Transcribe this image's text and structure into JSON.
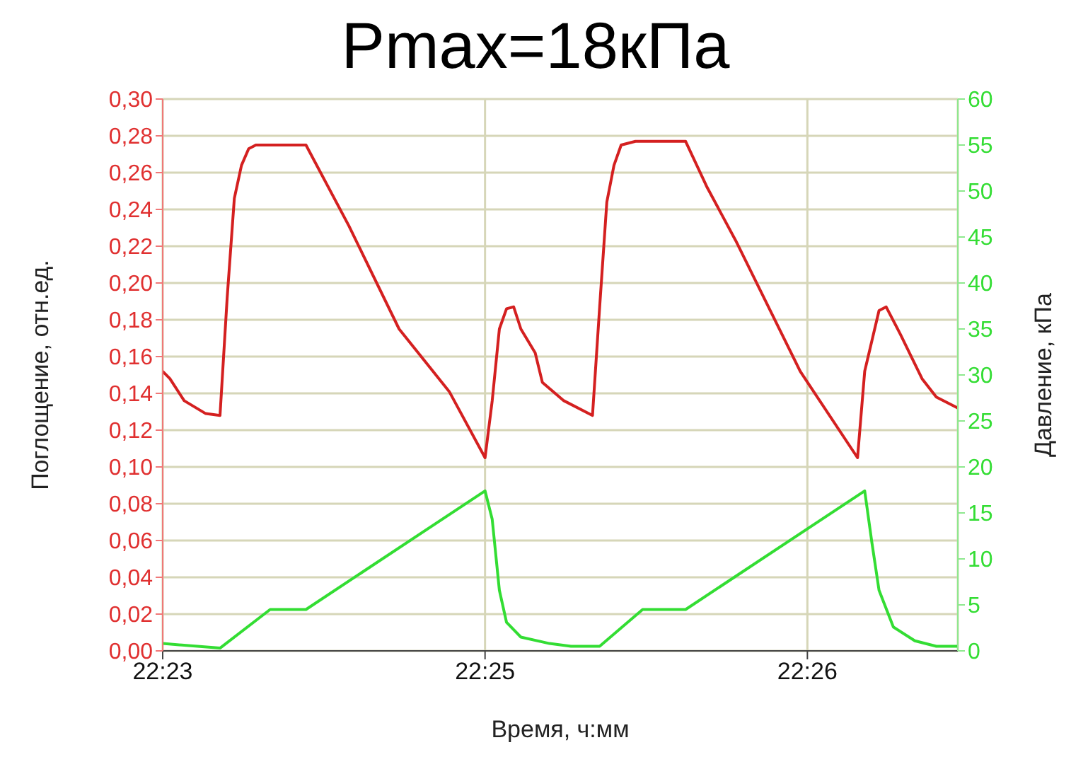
{
  "chart_data": {
    "type": "line",
    "title": "Pmax=18кПа",
    "xlabel": "Время, ч:мм",
    "ylabel": "Поглощение, отн.ед.",
    "y2label": "Давление, кПа",
    "categories": [
      "22:23",
      null,
      null,
      null,
      null,
      null,
      null,
      null,
      null,
      null,
      null,
      null,
      null,
      null,
      null,
      null,
      null,
      null,
      null,
      null,
      null,
      null,
      null,
      null,
      null,
      null,
      null,
      null,
      null,
      null,
      null,
      null,
      null,
      null,
      null,
      null,
      null,
      null,
      null,
      null,
      null,
      null,
      null,
      null,
      null,
      "22:25",
      null,
      null,
      null,
      null,
      null,
      null,
      null,
      null,
      null,
      null,
      null,
      null,
      null,
      null,
      null,
      null,
      null,
      null,
      null,
      null,
      null,
      null,
      null,
      null,
      null,
      null,
      null,
      null,
      null,
      null,
      null,
      null,
      null,
      null,
      null,
      null,
      null,
      null,
      null,
      null,
      null,
      null,
      null,
      null,
      "22:26",
      null,
      null,
      null,
      null,
      null,
      null,
      null,
      null,
      null,
      null,
      null,
      null,
      null,
      null,
      null,
      null,
      null,
      null,
      null,
      null,
      null
    ],
    "ylim": [
      0,
      0.3
    ],
    "yticks": [
      {
        "value": 0,
        "label": "0,00"
      },
      {
        "value": 0.02,
        "label": "0,02"
      },
      {
        "value": 0.04,
        "label": "0,04"
      },
      {
        "value": 0.06,
        "label": "0,06"
      },
      {
        "value": 0.08,
        "label": "0,08"
      },
      {
        "value": 0.1,
        "label": "0,10"
      },
      {
        "value": 0.12,
        "label": "0,12"
      },
      {
        "value": 0.14,
        "label": "0,14"
      },
      {
        "value": 0.16,
        "label": "0,16"
      },
      {
        "value": 0.18,
        "label": "0,18"
      },
      {
        "value": 0.2,
        "label": "0,20"
      },
      {
        "value": 0.22,
        "label": "0,22"
      },
      {
        "value": 0.24,
        "label": "0,24"
      },
      {
        "value": 0.26,
        "label": "0,26"
      },
      {
        "value": 0.28,
        "label": "0,28"
      },
      {
        "value": 0.3,
        "label": "0,30"
      }
    ],
    "y2lim": [
      0,
      60
    ],
    "y2ticks": [
      0,
      5,
      10,
      15,
      20,
      25,
      30,
      35,
      40,
      45,
      50,
      55,
      60
    ],
    "grid": true,
    "series": [
      {
        "color": "#d42020",
        "axis": "y",
        "values": [
          0.152,
          0.148,
          null,
          0.136,
          null,
          null,
          0.129,
          null,
          0.128,
          0.192,
          0.246,
          0.264,
          0.273,
          0.275,
          null,
          null,
          null,
          null,
          null,
          null,
          0.275,
          null,
          null,
          null,
          null,
          null,
          0.231,
          null,
          null,
          null,
          null,
          null,
          null,
          0.175,
          null,
          null,
          null,
          null,
          null,
          null,
          0.141,
          null,
          null,
          null,
          null,
          0.105,
          0.136,
          0.175,
          0.186,
          0.187,
          0.175,
          null,
          0.162,
          0.146,
          null,
          null,
          0.136,
          null,
          null,
          null,
          0.128,
          0.187,
          0.244,
          0.264,
          0.275,
          null,
          0.277,
          null,
          null,
          null,
          null,
          null,
          null,
          0.277,
          null,
          null,
          0.252,
          null,
          null,
          null,
          0.223,
          null,
          null,
          null,
          null,
          null,
          null,
          null,
          null,
          0.152,
          null,
          null,
          null,
          null,
          null,
          null,
          null,
          0.105,
          0.152,
          null,
          0.185,
          0.187,
          null,
          0.172,
          null,
          null,
          0.148,
          null,
          0.138,
          null,
          null,
          0.132
        ]
      },
      {
        "color": "#33dd33",
        "axis": "y2",
        "values": [
          0.8,
          null,
          null,
          null,
          null,
          null,
          null,
          null,
          0.3,
          null,
          null,
          null,
          null,
          null,
          null,
          4.5,
          null,
          null,
          null,
          null,
          4.5,
          null,
          null,
          null,
          null,
          null,
          null,
          null,
          null,
          null,
          null,
          null,
          null,
          null,
          null,
          null,
          null,
          null,
          null,
          null,
          null,
          null,
          null,
          null,
          null,
          17.4,
          14.3,
          6.6,
          3.1,
          null,
          1.5,
          null,
          null,
          null,
          0.8,
          null,
          null,
          0.5,
          null,
          null,
          null,
          0.5,
          null,
          null,
          null,
          null,
          null,
          4.5,
          null,
          null,
          null,
          null,
          null,
          4.5,
          null,
          null,
          null,
          null,
          null,
          null,
          null,
          null,
          null,
          null,
          null,
          null,
          null,
          null,
          null,
          null,
          null,
          null,
          null,
          null,
          null,
          null,
          null,
          null,
          17.4,
          11.8,
          6.6,
          null,
          2.6,
          null,
          null,
          1.1,
          null,
          null,
          0.5,
          null,
          null,
          0.5
        ]
      }
    ]
  }
}
